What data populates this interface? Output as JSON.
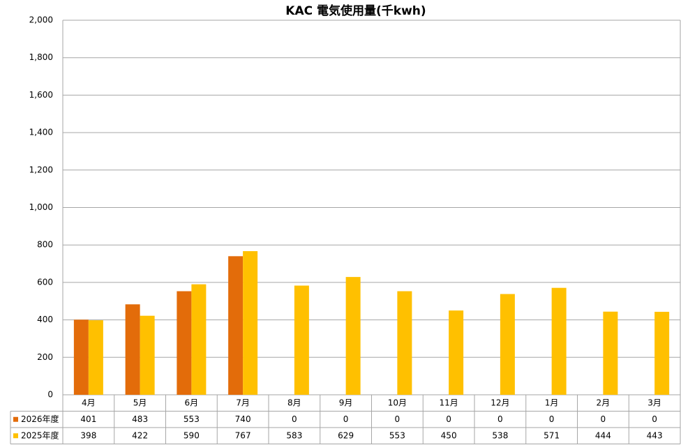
{
  "chart_data": {
    "type": "bar",
    "title": "KAC 電気使用量(千kwh)",
    "categories": [
      "4月",
      "5月",
      "6月",
      "7月",
      "8月",
      "9月",
      "10月",
      "11月",
      "12月",
      "1月",
      "2月",
      "3月"
    ],
    "series": [
      {
        "name": "2026年度",
        "color": "#e36c0a",
        "values": [
          401,
          483,
          553,
          740,
          0,
          0,
          0,
          0,
          0,
          0,
          0,
          0
        ]
      },
      {
        "name": "2025年度",
        "color": "#ffc000",
        "values": [
          398,
          422,
          590,
          767,
          583,
          629,
          553,
          450,
          538,
          571,
          444,
          443
        ]
      }
    ],
    "ylim": [
      0,
      2000
    ],
    "yticks": [
      0,
      200,
      400,
      600,
      800,
      {
        "value": 1000,
        "label": "1,000"
      },
      {
        "value": 1200,
        "label": "1,200"
      },
      {
        "value": 1400,
        "label": "1,400"
      },
      {
        "value": 1600,
        "label": "1,600"
      },
      {
        "value": 1800,
        "label": "1,800"
      },
      {
        "value": 2000,
        "label": "2,000"
      }
    ],
    "grid": true
  }
}
